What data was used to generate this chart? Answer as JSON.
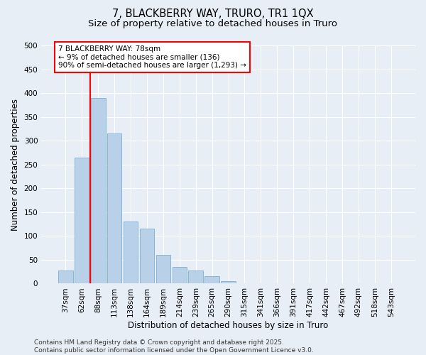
{
  "title_line1": "7, BLACKBERRY WAY, TRURO, TR1 1QX",
  "title_line2": "Size of property relative to detached houses in Truro",
  "xlabel": "Distribution of detached houses by size in Truro",
  "ylabel": "Number of detached properties",
  "categories": [
    "37sqm",
    "62sqm",
    "88sqm",
    "113sqm",
    "138sqm",
    "164sqm",
    "189sqm",
    "214sqm",
    "239sqm",
    "265sqm",
    "290sqm",
    "315sqm",
    "341sqm",
    "366sqm",
    "391sqm",
    "417sqm",
    "442sqm",
    "467sqm",
    "492sqm",
    "518sqm",
    "543sqm"
  ],
  "values": [
    27,
    265,
    390,
    315,
    130,
    115,
    60,
    35,
    28,
    15,
    5,
    1,
    0,
    0,
    0,
    0,
    0,
    0,
    0,
    0,
    1
  ],
  "bar_color": "#b8d0e8",
  "bar_edge_color": "#7aafd4",
  "vline_color": "red",
  "annotation_text": "7 BLACKBERRY WAY: 78sqm\n← 9% of detached houses are smaller (136)\n90% of semi-detached houses are larger (1,293) →",
  "annotation_box_color": "white",
  "annotation_box_edge_color": "red",
  "ylim": [
    0,
    500
  ],
  "yticks": [
    0,
    50,
    100,
    150,
    200,
    250,
    300,
    350,
    400,
    450,
    500
  ],
  "background_color": "#e8eef5",
  "grid_color": "#ffffff",
  "footer": "Contains HM Land Registry data © Crown copyright and database right 2025.\nContains public sector information licensed under the Open Government Licence v3.0.",
  "title_fontsize": 10.5,
  "subtitle_fontsize": 9.5,
  "axis_label_fontsize": 8.5,
  "tick_fontsize": 7.5,
  "annotation_fontsize": 7.5,
  "footer_fontsize": 6.5
}
